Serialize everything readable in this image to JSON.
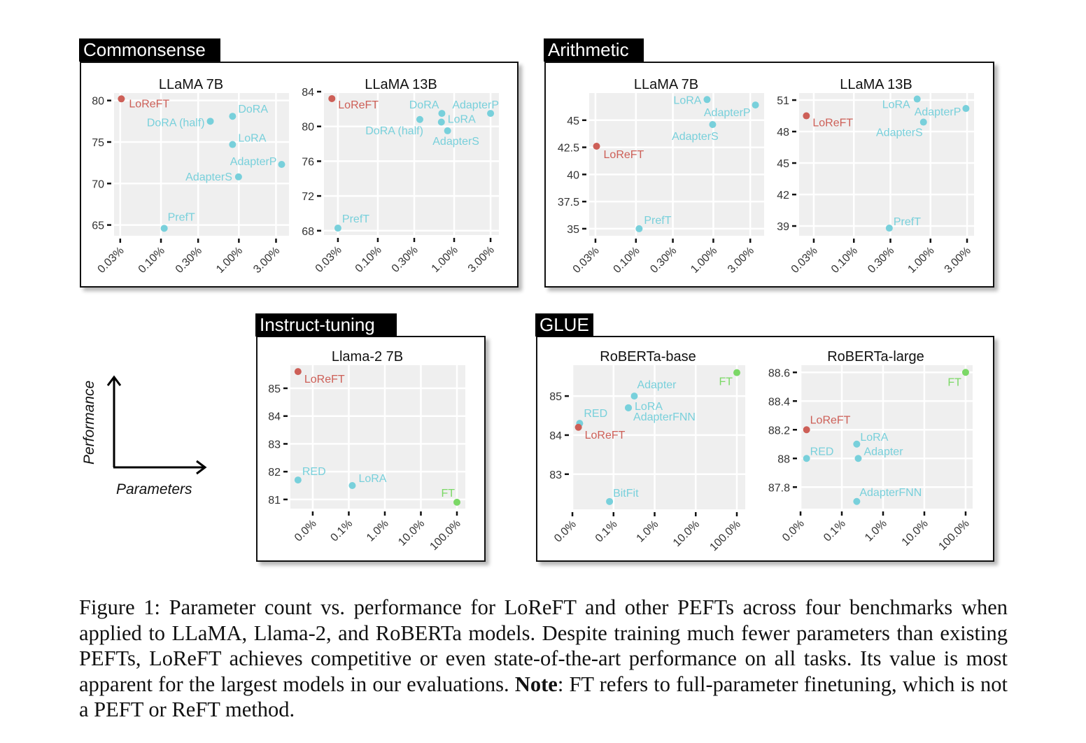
{
  "groups": {
    "commonsense": "Commonsense",
    "arithmetic": "Arithmetic",
    "instruct": "Instruct-tuning",
    "glue": "GLUE"
  },
  "axes_legend": {
    "y": "Performance",
    "x": "Parameters"
  },
  "caption": {
    "prefix": "Figure 1: Parameter count vs. performance for LoReFT and other PEFTs across four benchmarks when applied to LLaMA, Llama-2, and RoBERTa models. Despite training much fewer parameters than existing PEFTs, LoReFT achieves competitive or even state-of-the-art performance on all tasks. Its value is most apparent for the largest models in our evaluations. ",
    "note_label": "Note",
    "suffix": ": FT refers to full-parameter finetuning, which is not a PEFT or ReFT method."
  },
  "colors": {
    "loreft": "#cd5f57",
    "peft": "#78d0db",
    "ft": "#7bd866",
    "plot_bg": "#efefef",
    "grid": "#ffffff"
  },
  "chart_data": [
    {
      "type": "scatter",
      "group": "Commonsense",
      "title": "LLaMA 7B",
      "xscale": "log",
      "xlim": [
        0.025,
        4.4
      ],
      "ylim": [
        63.7,
        80.9
      ],
      "grid": true,
      "xticks": [
        {
          "value": 0.03,
          "label": "0.03%"
        },
        {
          "value": 0.1,
          "label": "0.10%"
        },
        {
          "value": 0.3,
          "label": "0.30%"
        },
        {
          "value": 1,
          "label": "1.00%"
        },
        {
          "value": 3,
          "label": "3.00%"
        }
      ],
      "yticks": [
        {
          "value": 65,
          "label": "65"
        },
        {
          "value": 70,
          "label": "70"
        },
        {
          "value": 75,
          "label": "75"
        },
        {
          "value": 80,
          "label": "80"
        }
      ],
      "points": [
        {
          "label": "LoReFT",
          "x": 0.031,
          "y": 80.2,
          "kind": "loreft"
        },
        {
          "label": "DoRA (half)",
          "x": 0.43,
          "y": 77.5,
          "kind": "peft"
        },
        {
          "label": "DoRA",
          "x": 0.83,
          "y": 78.1,
          "kind": "peft"
        },
        {
          "label": "LoRA",
          "x": 0.83,
          "y": 74.7,
          "kind": "peft"
        },
        {
          "label": "AdapterP",
          "x": 3.54,
          "y": 72.3,
          "kind": "peft"
        },
        {
          "label": "AdapterS",
          "x": 0.99,
          "y": 70.8,
          "kind": "peft"
        },
        {
          "label": "PrefT",
          "x": 0.11,
          "y": 64.6,
          "kind": "peft"
        }
      ]
    },
    {
      "type": "scatter",
      "group": "Commonsense",
      "title": "LLaMA 13B",
      "xscale": "log",
      "xlim": [
        0.0197,
        3.86
      ],
      "ylim": [
        67.5,
        83.84
      ],
      "grid": true,
      "xticks": [
        {
          "value": 0.03,
          "label": "0.03%"
        },
        {
          "value": 0.1,
          "label": "0.10%"
        },
        {
          "value": 0.3,
          "label": "0.30%"
        },
        {
          "value": 1,
          "label": "1.00%"
        },
        {
          "value": 3,
          "label": "3.00%"
        }
      ],
      "yticks": [
        {
          "value": 68,
          "label": "68"
        },
        {
          "value": 72,
          "label": "72"
        },
        {
          "value": 76,
          "label": "76"
        },
        {
          "value": 80,
          "label": "80"
        },
        {
          "value": 84,
          "label": "84"
        }
      ],
      "points": [
        {
          "label": "LoReFT",
          "x": 0.025,
          "y": 83.2,
          "kind": "loreft"
        },
        {
          "label": "DoRA",
          "x": 0.69,
          "y": 81.5,
          "kind": "peft"
        },
        {
          "label": "AdapterP",
          "x": 3.0,
          "y": 81.5,
          "kind": "peft"
        },
        {
          "label": "DoRA (half)",
          "x": 0.355,
          "y": 80.8,
          "kind": "peft"
        },
        {
          "label": "LoRA",
          "x": 0.68,
          "y": 80.5,
          "kind": "peft"
        },
        {
          "label": "AdapterS",
          "x": 0.82,
          "y": 79.5,
          "kind": "peft"
        },
        {
          "label": "PrefT",
          "x": 0.03,
          "y": 68.3,
          "kind": "peft"
        }
      ]
    },
    {
      "type": "scatter",
      "group": "Arithmetic",
      "title": "LLaMA 7B",
      "xscale": "log",
      "xlim": [
        0.0249,
        4.53
      ],
      "ylim": [
        34.35,
        47.5
      ],
      "grid": true,
      "xticks": [
        {
          "value": 0.03,
          "label": "0.03%"
        },
        {
          "value": 0.1,
          "label": "0.10%"
        },
        {
          "value": 0.3,
          "label": "0.30%"
        },
        {
          "value": 1,
          "label": "1.00%"
        },
        {
          "value": 3,
          "label": "3.00%"
        }
      ],
      "yticks": [
        {
          "value": 35,
          "label": "35"
        },
        {
          "value": 37.5,
          "label": "37.5"
        },
        {
          "value": 40,
          "label": "40"
        },
        {
          "value": 42.5,
          "label": "42.5"
        },
        {
          "value": 45,
          "label": "45"
        }
      ],
      "points": [
        {
          "label": "LoRA",
          "x": 0.83,
          "y": 46.9,
          "kind": "peft"
        },
        {
          "label": "AdapterP",
          "x": 3.5,
          "y": 46.4,
          "kind": "peft"
        },
        {
          "label": "AdapterS",
          "x": 0.98,
          "y": 44.6,
          "kind": "peft"
        },
        {
          "label": "LoReFT",
          "x": 0.031,
          "y": 42.6,
          "kind": "loreft"
        },
        {
          "label": "PrefT",
          "x": 0.11,
          "y": 35.0,
          "kind": "peft"
        }
      ]
    },
    {
      "type": "scatter",
      "group": "Arithmetic",
      "title": "LLaMA 13B",
      "xscale": "log",
      "xlim": [
        0.0193,
        3.7
      ],
      "ylim": [
        38.07,
        51.67
      ],
      "grid": true,
      "xticks": [
        {
          "value": 0.03,
          "label": "0.03%"
        },
        {
          "value": 0.1,
          "label": "0.10%"
        },
        {
          "value": 0.3,
          "label": "0.30%"
        },
        {
          "value": 1,
          "label": "1.00%"
        },
        {
          "value": 3,
          "label": "3.00%"
        }
      ],
      "yticks": [
        {
          "value": 39,
          "label": "39"
        },
        {
          "value": 42,
          "label": "42"
        },
        {
          "value": 45,
          "label": "45"
        },
        {
          "value": 48,
          "label": "48"
        },
        {
          "value": 51,
          "label": "51"
        }
      ],
      "points": [
        {
          "label": "LoRA",
          "x": 0.67,
          "y": 51.1,
          "kind": "peft"
        },
        {
          "label": "AdapterP",
          "x": 2.9,
          "y": 50.2,
          "kind": "peft"
        },
        {
          "label": "LoReFT",
          "x": 0.024,
          "y": 49.5,
          "kind": "loreft"
        },
        {
          "label": "AdapterS",
          "x": 0.81,
          "y": 48.9,
          "kind": "peft"
        },
        {
          "label": "PrefT",
          "x": 0.29,
          "y": 38.8,
          "kind": "peft"
        }
      ]
    },
    {
      "type": "scatter",
      "group": "Instruct-tuning",
      "title": "Llama-2 7B",
      "xscale": "log",
      "xlim": [
        0.0024,
        171
      ],
      "ylim": [
        80.67,
        85.83
      ],
      "grid": true,
      "xticks": [
        {
          "value": 0.01,
          "label": "0.0%"
        },
        {
          "value": 0.1,
          "label": "0.1%"
        },
        {
          "value": 1,
          "label": "1.0%"
        },
        {
          "value": 10,
          "label": "10.0%"
        },
        {
          "value": 100,
          "label": "100.0%"
        }
      ],
      "yticks": [
        {
          "value": 81,
          "label": "81"
        },
        {
          "value": 82,
          "label": "82"
        },
        {
          "value": 83,
          "label": "83"
        },
        {
          "value": 84,
          "label": "84"
        },
        {
          "value": 85,
          "label": "85"
        }
      ],
      "points": [
        {
          "label": "LoReFT",
          "x": 0.0039,
          "y": 85.6,
          "kind": "loreft"
        },
        {
          "label": "RED",
          "x": 0.0039,
          "y": 81.7,
          "kind": "peft"
        },
        {
          "label": "LoRA",
          "x": 0.125,
          "y": 81.5,
          "kind": "peft"
        },
        {
          "label": "FT",
          "x": 100,
          "y": 80.9,
          "kind": "ft"
        }
      ]
    },
    {
      "type": "scatter",
      "group": "GLUE",
      "title": "RoBERTa-base",
      "xscale": "log",
      "xlim": [
        0.0096,
        160
      ],
      "ylim": [
        82.1,
        85.79
      ],
      "grid": true,
      "xticks": [
        {
          "value": 0.01,
          "label": "0.0%"
        },
        {
          "value": 0.1,
          "label": "0.1%"
        },
        {
          "value": 1,
          "label": "1.0%"
        },
        {
          "value": 10,
          "label": "10.0%"
        },
        {
          "value": 100,
          "label": "100.0%"
        }
      ],
      "yticks": [
        {
          "value": 83,
          "label": "83"
        },
        {
          "value": 84,
          "label": "84"
        },
        {
          "value": 85,
          "label": "85"
        }
      ],
      "points": [
        {
          "label": "FT",
          "x": 100,
          "y": 85.6,
          "kind": "ft"
        },
        {
          "label": "Adapter",
          "x": 0.32,
          "y": 85.0,
          "kind": "peft"
        },
        {
          "label": "LoRA",
          "x": 0.23,
          "y": 84.7,
          "kind": "peft"
        },
        {
          "label": "AdapterFNN",
          "x": 0.23,
          "y": 84.7,
          "kind": "peft"
        },
        {
          "label": "RED",
          "x": 0.015,
          "y": 84.3,
          "kind": "peft"
        },
        {
          "label": "LoReFT",
          "x": 0.014,
          "y": 84.2,
          "kind": "loreft"
        },
        {
          "label": "BitFit",
          "x": 0.08,
          "y": 82.3,
          "kind": "peft"
        }
      ]
    },
    {
      "type": "scatter",
      "group": "GLUE",
      "title": "RoBERTa-large",
      "xscale": "log",
      "xlim": [
        0.0096,
        148
      ],
      "ylim": [
        87.65,
        88.65
      ],
      "grid": true,
      "xticks": [
        {
          "value": 0.01,
          "label": "0.0%"
        },
        {
          "value": 0.1,
          "label": "0.1%"
        },
        {
          "value": 1,
          "label": "1.0%"
        },
        {
          "value": 10,
          "label": "10.0%"
        },
        {
          "value": 100,
          "label": "100.0%"
        }
      ],
      "yticks": [
        {
          "value": 87.8,
          "label": "87.8"
        },
        {
          "value": 88,
          "label": "88"
        },
        {
          "value": 88.2,
          "label": "88.2"
        },
        {
          "value": 88.4,
          "label": "88.4"
        },
        {
          "value": 88.6,
          "label": "88.6"
        }
      ],
      "points": [
        {
          "label": "FT",
          "x": 100,
          "y": 88.6,
          "kind": "ft"
        },
        {
          "label": "LoReFT",
          "x": 0.014,
          "y": 88.2,
          "kind": "loreft"
        },
        {
          "label": "LoRA",
          "x": 0.23,
          "y": 88.1,
          "kind": "peft"
        },
        {
          "label": "RED",
          "x": 0.014,
          "y": 88.0,
          "kind": "peft"
        },
        {
          "label": "Adapter",
          "x": 0.25,
          "y": 88.0,
          "kind": "peft"
        },
        {
          "label": "AdapterFNN",
          "x": 0.23,
          "y": 87.7,
          "kind": "peft"
        }
      ]
    }
  ]
}
